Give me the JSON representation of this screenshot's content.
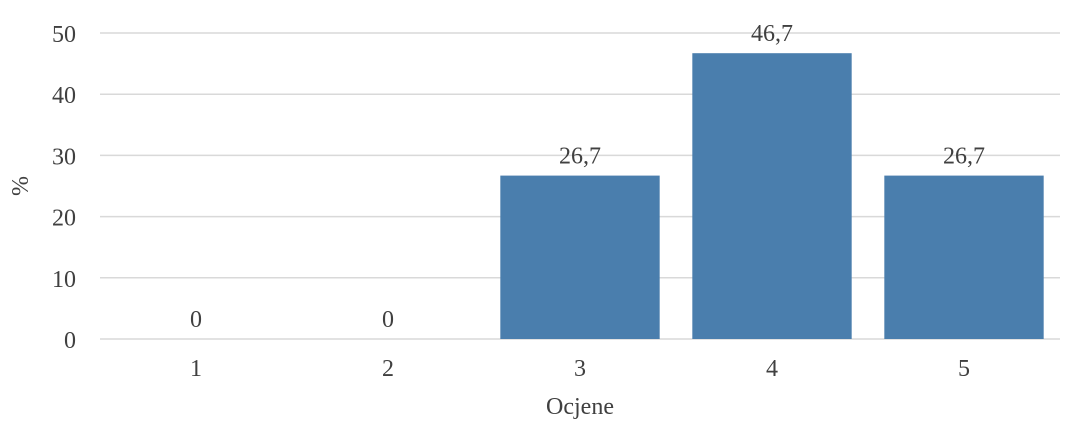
{
  "chart_data": {
    "type": "bar",
    "categories": [
      "1",
      "2",
      "3",
      "4",
      "5"
    ],
    "values": [
      0,
      0,
      26.7,
      46.7,
      26.7
    ],
    "data_labels": [
      "0",
      "0",
      "26,7",
      "46,7",
      "26,7"
    ],
    "title": "",
    "xlabel": "Ocjene",
    "ylabel": "%",
    "ylim": [
      0,
      50
    ],
    "yticks": [
      0,
      10,
      20,
      30,
      40,
      50
    ],
    "ytick_labels": [
      "0",
      "10",
      "20",
      "30",
      "40",
      "50"
    ],
    "grid": true,
    "legend": "none",
    "bar_color": "#4a7ead"
  }
}
